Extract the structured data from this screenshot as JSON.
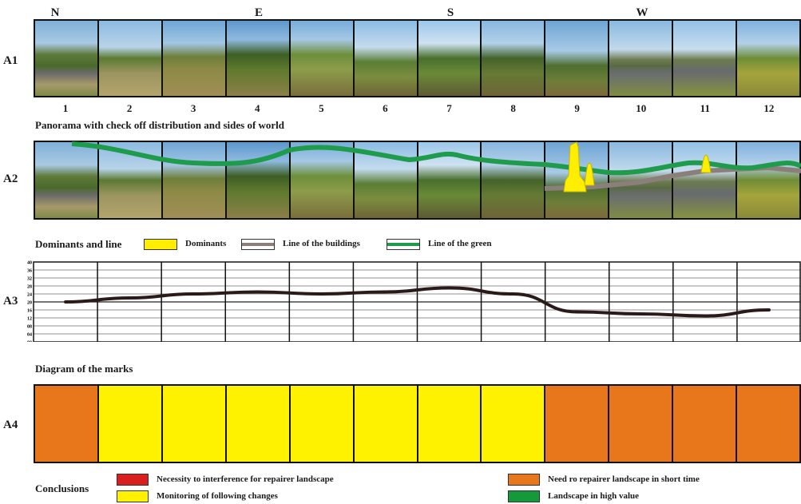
{
  "directions": [
    "N",
    "E",
    "S",
    "W"
  ],
  "rows": {
    "a1": "A1",
    "a2": "A2",
    "a3": "A3",
    "a4": "A4"
  },
  "columns": [
    "1",
    "2",
    "3",
    "4",
    "5",
    "6",
    "7",
    "8",
    "9",
    "10",
    "11",
    "12"
  ],
  "panorama_caption": "Panorama with check off distribution and sides of world",
  "legend": {
    "title": "Dominants and line",
    "dominants": "Dominants",
    "buildings": "Line of the buildings",
    "green": "Line of the green",
    "colors": {
      "dominants": "#ffee00",
      "buildings": "#8a7f7a",
      "green": "#1e9b4b"
    }
  },
  "diagram_caption": "Diagram of the marks",
  "chart_data": {
    "type": "line",
    "x": [
      1,
      2,
      3,
      4,
      5,
      6,
      7,
      8,
      9,
      10,
      11,
      12
    ],
    "values": [
      20,
      22,
      24,
      25,
      24,
      25,
      27,
      24,
      15,
      14,
      13,
      16
    ],
    "yticks": [
      "40",
      "36",
      "32",
      "28",
      "24",
      "20",
      "16",
      "12",
      "08",
      "04",
      "00"
    ],
    "ylim": [
      0,
      40
    ],
    "grid": true,
    "line_color": "#2a1a18"
  },
  "marks": [
    "orange",
    "yellow",
    "yellow",
    "yellow",
    "yellow",
    "yellow",
    "yellow",
    "yellow",
    "orange",
    "orange",
    "orange",
    "orange"
  ],
  "mark_colors": {
    "orange": "#e8771c",
    "yellow": "#fff200",
    "red": "#d9201f",
    "green": "#149a3b"
  },
  "conclusions": {
    "title": "Conclusions",
    "items": [
      {
        "label": "Necessity to interference for repairer landscape",
        "color": "red"
      },
      {
        "label": "Monitoring of following changes",
        "color": "yellow"
      },
      {
        "label": "Need ro repairer landscape in short time",
        "color": "orange"
      },
      {
        "label": "Landscape in high value",
        "color": "green"
      }
    ]
  }
}
